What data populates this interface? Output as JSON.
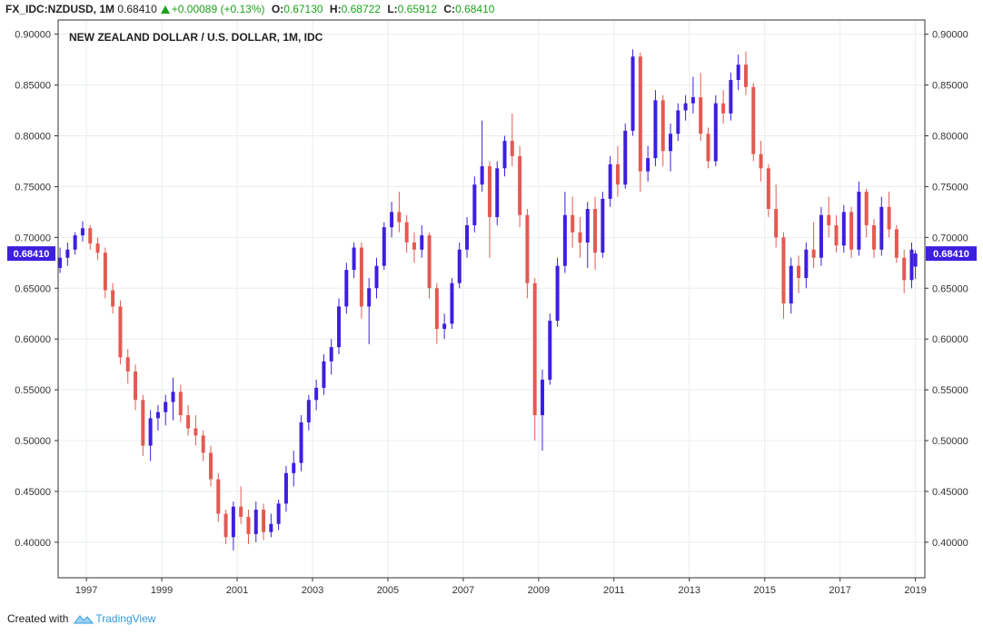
{
  "header": {
    "symbol": "FX_IDC:NZDUSD, 1M",
    "last": "0.68410",
    "change": "+0.00089 (+0.13%)",
    "open_label": "O:",
    "open": "0.67130",
    "high_label": "H:",
    "high": "0.68722",
    "low_label": "L:",
    "low": "0.65912",
    "close_label": "C:",
    "close": "0.68410"
  },
  "footer": {
    "created_with": "Created with",
    "brand": "TradingView"
  },
  "colors": {
    "up": "#3d1fe0",
    "down": "#e35a52",
    "grid": "#e8edf1",
    "axis": "#333333",
    "price_label_bg": "#3d1fe0"
  },
  "chart_data": {
    "type": "candlestick",
    "title": "NEW ZEALAND DOLLAR / U.S. DOLLAR, 1M, IDC",
    "ylim": [
      0.365,
      0.914
    ],
    "xlim": [
      1996.25,
      2019.25
    ],
    "y_ticks": [
      "0.90000",
      "0.85000",
      "0.80000",
      "0.75000",
      "0.70000",
      "0.65000",
      "0.60000",
      "0.55000",
      "0.50000",
      "0.45000",
      "0.40000"
    ],
    "x_ticks": [
      "1997",
      "1999",
      "2001",
      "2003",
      "2005",
      "2007",
      "2009",
      "2011",
      "2013",
      "2015",
      "2017",
      "2019"
    ],
    "last_price_label": "0.68410",
    "last_price": 0.6841,
    "grid": true,
    "candles": [
      {
        "t": 1996.3,
        "o": 0.67,
        "h": 0.69,
        "l": 0.665,
        "c": 0.68
      },
      {
        "t": 1996.5,
        "o": 0.68,
        "h": 0.695,
        "l": 0.672,
        "c": 0.688
      },
      {
        "t": 1996.7,
        "o": 0.688,
        "h": 0.705,
        "l": 0.683,
        "c": 0.702
      },
      {
        "t": 1996.9,
        "o": 0.702,
        "h": 0.716,
        "l": 0.696,
        "c": 0.709
      },
      {
        "t": 1997.1,
        "o": 0.709,
        "h": 0.712,
        "l": 0.688,
        "c": 0.694
      },
      {
        "t": 1997.3,
        "o": 0.694,
        "h": 0.7,
        "l": 0.678,
        "c": 0.685
      },
      {
        "t": 1997.5,
        "o": 0.685,
        "h": 0.69,
        "l": 0.64,
        "c": 0.648
      },
      {
        "t": 1997.7,
        "o": 0.648,
        "h": 0.655,
        "l": 0.625,
        "c": 0.632
      },
      {
        "t": 1997.9,
        "o": 0.632,
        "h": 0.638,
        "l": 0.575,
        "c": 0.582
      },
      {
        "t": 1998.1,
        "o": 0.582,
        "h": 0.59,
        "l": 0.556,
        "c": 0.568
      },
      {
        "t": 1998.3,
        "o": 0.568,
        "h": 0.575,
        "l": 0.53,
        "c": 0.54
      },
      {
        "t": 1998.5,
        "o": 0.54,
        "h": 0.545,
        "l": 0.485,
        "c": 0.495
      },
      {
        "t": 1998.7,
        "o": 0.495,
        "h": 0.53,
        "l": 0.48,
        "c": 0.522
      },
      {
        "t": 1998.9,
        "o": 0.522,
        "h": 0.535,
        "l": 0.51,
        "c": 0.528
      },
      {
        "t": 1999.1,
        "o": 0.528,
        "h": 0.545,
        "l": 0.515,
        "c": 0.538
      },
      {
        "t": 1999.3,
        "o": 0.538,
        "h": 0.562,
        "l": 0.52,
        "c": 0.548
      },
      {
        "t": 1999.5,
        "o": 0.548,
        "h": 0.555,
        "l": 0.518,
        "c": 0.525
      },
      {
        "t": 1999.7,
        "o": 0.525,
        "h": 0.535,
        "l": 0.505,
        "c": 0.512
      },
      {
        "t": 1999.9,
        "o": 0.512,
        "h": 0.525,
        "l": 0.495,
        "c": 0.505
      },
      {
        "t": 2000.1,
        "o": 0.505,
        "h": 0.51,
        "l": 0.48,
        "c": 0.488
      },
      {
        "t": 2000.3,
        "o": 0.488,
        "h": 0.495,
        "l": 0.455,
        "c": 0.462
      },
      {
        "t": 2000.5,
        "o": 0.462,
        "h": 0.468,
        "l": 0.42,
        "c": 0.428
      },
      {
        "t": 2000.7,
        "o": 0.428,
        "h": 0.432,
        "l": 0.398,
        "c": 0.405
      },
      {
        "t": 2000.9,
        "o": 0.405,
        "h": 0.44,
        "l": 0.392,
        "c": 0.435
      },
      {
        "t": 2001.1,
        "o": 0.435,
        "h": 0.455,
        "l": 0.418,
        "c": 0.425
      },
      {
        "t": 2001.3,
        "o": 0.425,
        "h": 0.432,
        "l": 0.398,
        "c": 0.408
      },
      {
        "t": 2001.5,
        "o": 0.408,
        "h": 0.44,
        "l": 0.4,
        "c": 0.432
      },
      {
        "t": 2001.7,
        "o": 0.432,
        "h": 0.438,
        "l": 0.402,
        "c": 0.41
      },
      {
        "t": 2001.9,
        "o": 0.41,
        "h": 0.428,
        "l": 0.405,
        "c": 0.418
      },
      {
        "t": 2002.1,
        "o": 0.418,
        "h": 0.442,
        "l": 0.412,
        "c": 0.438
      },
      {
        "t": 2002.3,
        "o": 0.438,
        "h": 0.475,
        "l": 0.43,
        "c": 0.468
      },
      {
        "t": 2002.5,
        "o": 0.468,
        "h": 0.49,
        "l": 0.455,
        "c": 0.478
      },
      {
        "t": 2002.7,
        "o": 0.478,
        "h": 0.525,
        "l": 0.47,
        "c": 0.518
      },
      {
        "t": 2002.9,
        "o": 0.518,
        "h": 0.545,
        "l": 0.51,
        "c": 0.54
      },
      {
        "t": 2003.1,
        "o": 0.54,
        "h": 0.56,
        "l": 0.53,
        "c": 0.552
      },
      {
        "t": 2003.3,
        "o": 0.552,
        "h": 0.585,
        "l": 0.545,
        "c": 0.578
      },
      {
        "t": 2003.5,
        "o": 0.578,
        "h": 0.6,
        "l": 0.565,
        "c": 0.592
      },
      {
        "t": 2003.7,
        "o": 0.592,
        "h": 0.64,
        "l": 0.585,
        "c": 0.632
      },
      {
        "t": 2003.9,
        "o": 0.632,
        "h": 0.675,
        "l": 0.625,
        "c": 0.668
      },
      {
        "t": 2004.1,
        "o": 0.668,
        "h": 0.695,
        "l": 0.66,
        "c": 0.69
      },
      {
        "t": 2004.3,
        "o": 0.69,
        "h": 0.695,
        "l": 0.62,
        "c": 0.632
      },
      {
        "t": 2004.5,
        "o": 0.632,
        "h": 0.66,
        "l": 0.595,
        "c": 0.65
      },
      {
        "t": 2004.7,
        "o": 0.65,
        "h": 0.68,
        "l": 0.64,
        "c": 0.672
      },
      {
        "t": 2004.9,
        "o": 0.672,
        "h": 0.715,
        "l": 0.668,
        "c": 0.71
      },
      {
        "t": 2005.1,
        "o": 0.71,
        "h": 0.735,
        "l": 0.7,
        "c": 0.725
      },
      {
        "t": 2005.3,
        "o": 0.725,
        "h": 0.745,
        "l": 0.705,
        "c": 0.715
      },
      {
        "t": 2005.5,
        "o": 0.715,
        "h": 0.722,
        "l": 0.685,
        "c": 0.695
      },
      {
        "t": 2005.7,
        "o": 0.695,
        "h": 0.705,
        "l": 0.675,
        "c": 0.688
      },
      {
        "t": 2005.9,
        "o": 0.688,
        "h": 0.712,
        "l": 0.68,
        "c": 0.702
      },
      {
        "t": 2006.1,
        "o": 0.702,
        "h": 0.705,
        "l": 0.64,
        "c": 0.65
      },
      {
        "t": 2006.3,
        "o": 0.65,
        "h": 0.655,
        "l": 0.595,
        "c": 0.61
      },
      {
        "t": 2006.5,
        "o": 0.61,
        "h": 0.625,
        "l": 0.6,
        "c": 0.615
      },
      {
        "t": 2006.7,
        "o": 0.615,
        "h": 0.66,
        "l": 0.61,
        "c": 0.655
      },
      {
        "t": 2006.9,
        "o": 0.655,
        "h": 0.695,
        "l": 0.65,
        "c": 0.688
      },
      {
        "t": 2007.1,
        "o": 0.688,
        "h": 0.72,
        "l": 0.68,
        "c": 0.712
      },
      {
        "t": 2007.3,
        "o": 0.712,
        "h": 0.76,
        "l": 0.705,
        "c": 0.752
      },
      {
        "t": 2007.5,
        "o": 0.752,
        "h": 0.815,
        "l": 0.745,
        "c": 0.77
      },
      {
        "t": 2007.7,
        "o": 0.77,
        "h": 0.775,
        "l": 0.68,
        "c": 0.72
      },
      {
        "t": 2007.9,
        "o": 0.72,
        "h": 0.775,
        "l": 0.712,
        "c": 0.768
      },
      {
        "t": 2008.1,
        "o": 0.768,
        "h": 0.8,
        "l": 0.76,
        "c": 0.795
      },
      {
        "t": 2008.3,
        "o": 0.795,
        "h": 0.822,
        "l": 0.77,
        "c": 0.78
      },
      {
        "t": 2008.5,
        "o": 0.78,
        "h": 0.79,
        "l": 0.71,
        "c": 0.722
      },
      {
        "t": 2008.7,
        "o": 0.722,
        "h": 0.728,
        "l": 0.64,
        "c": 0.655
      },
      {
        "t": 2008.9,
        "o": 0.655,
        "h": 0.66,
        "l": 0.5,
        "c": 0.525
      },
      {
        "t": 2009.1,
        "o": 0.525,
        "h": 0.57,
        "l": 0.49,
        "c": 0.56
      },
      {
        "t": 2009.3,
        "o": 0.56,
        "h": 0.625,
        "l": 0.555,
        "c": 0.618
      },
      {
        "t": 2009.5,
        "o": 0.618,
        "h": 0.68,
        "l": 0.612,
        "c": 0.672
      },
      {
        "t": 2009.7,
        "o": 0.672,
        "h": 0.745,
        "l": 0.665,
        "c": 0.722
      },
      {
        "t": 2009.9,
        "o": 0.722,
        "h": 0.74,
        "l": 0.69,
        "c": 0.705
      },
      {
        "t": 2010.1,
        "o": 0.705,
        "h": 0.72,
        "l": 0.68,
        "c": 0.695
      },
      {
        "t": 2010.3,
        "o": 0.695,
        "h": 0.735,
        "l": 0.67,
        "c": 0.728
      },
      {
        "t": 2010.5,
        "o": 0.728,
        "h": 0.74,
        "l": 0.668,
        "c": 0.685
      },
      {
        "t": 2010.7,
        "o": 0.685,
        "h": 0.745,
        "l": 0.68,
        "c": 0.738
      },
      {
        "t": 2010.9,
        "o": 0.738,
        "h": 0.78,
        "l": 0.73,
        "c": 0.772
      },
      {
        "t": 2011.1,
        "o": 0.772,
        "h": 0.79,
        "l": 0.74,
        "c": 0.752
      },
      {
        "t": 2011.3,
        "o": 0.752,
        "h": 0.812,
        "l": 0.748,
        "c": 0.805
      },
      {
        "t": 2011.5,
        "o": 0.805,
        "h": 0.885,
        "l": 0.8,
        "c": 0.878
      },
      {
        "t": 2011.7,
        "o": 0.878,
        "h": 0.882,
        "l": 0.745,
        "c": 0.765
      },
      {
        "t": 2011.9,
        "o": 0.765,
        "h": 0.79,
        "l": 0.755,
        "c": 0.778
      },
      {
        "t": 2012.1,
        "o": 0.778,
        "h": 0.845,
        "l": 0.77,
        "c": 0.835
      },
      {
        "t": 2012.3,
        "o": 0.835,
        "h": 0.84,
        "l": 0.77,
        "c": 0.785
      },
      {
        "t": 2012.5,
        "o": 0.785,
        "h": 0.812,
        "l": 0.765,
        "c": 0.802
      },
      {
        "t": 2012.7,
        "o": 0.802,
        "h": 0.832,
        "l": 0.795,
        "c": 0.825
      },
      {
        "t": 2012.9,
        "o": 0.825,
        "h": 0.84,
        "l": 0.815,
        "c": 0.832
      },
      {
        "t": 2013.1,
        "o": 0.832,
        "h": 0.858,
        "l": 0.822,
        "c": 0.838
      },
      {
        "t": 2013.3,
        "o": 0.838,
        "h": 0.862,
        "l": 0.795,
        "c": 0.802
      },
      {
        "t": 2013.5,
        "o": 0.802,
        "h": 0.808,
        "l": 0.768,
        "c": 0.775
      },
      {
        "t": 2013.7,
        "o": 0.775,
        "h": 0.84,
        "l": 0.77,
        "c": 0.832
      },
      {
        "t": 2013.9,
        "o": 0.832,
        "h": 0.845,
        "l": 0.812,
        "c": 0.822
      },
      {
        "t": 2014.1,
        "o": 0.822,
        "h": 0.862,
        "l": 0.815,
        "c": 0.855
      },
      {
        "t": 2014.3,
        "o": 0.855,
        "h": 0.88,
        "l": 0.845,
        "c": 0.87
      },
      {
        "t": 2014.5,
        "o": 0.87,
        "h": 0.883,
        "l": 0.84,
        "c": 0.848
      },
      {
        "t": 2014.7,
        "o": 0.848,
        "h": 0.852,
        "l": 0.775,
        "c": 0.782
      },
      {
        "t": 2014.9,
        "o": 0.782,
        "h": 0.795,
        "l": 0.755,
        "c": 0.768
      },
      {
        "t": 2015.1,
        "o": 0.768,
        "h": 0.772,
        "l": 0.72,
        "c": 0.728
      },
      {
        "t": 2015.3,
        "o": 0.728,
        "h": 0.752,
        "l": 0.69,
        "c": 0.7
      },
      {
        "t": 2015.5,
        "o": 0.7,
        "h": 0.705,
        "l": 0.62,
        "c": 0.635
      },
      {
        "t": 2015.7,
        "o": 0.635,
        "h": 0.68,
        "l": 0.625,
        "c": 0.672
      },
      {
        "t": 2015.9,
        "o": 0.672,
        "h": 0.682,
        "l": 0.645,
        "c": 0.66
      },
      {
        "t": 2016.1,
        "o": 0.66,
        "h": 0.695,
        "l": 0.65,
        "c": 0.688
      },
      {
        "t": 2016.3,
        "o": 0.688,
        "h": 0.715,
        "l": 0.67,
        "c": 0.68
      },
      {
        "t": 2016.5,
        "o": 0.68,
        "h": 0.73,
        "l": 0.672,
        "c": 0.722
      },
      {
        "t": 2016.7,
        "o": 0.722,
        "h": 0.74,
        "l": 0.7,
        "c": 0.712
      },
      {
        "t": 2016.9,
        "o": 0.712,
        "h": 0.722,
        "l": 0.685,
        "c": 0.692
      },
      {
        "t": 2017.1,
        "o": 0.692,
        "h": 0.732,
        "l": 0.685,
        "c": 0.725
      },
      {
        "t": 2017.3,
        "o": 0.725,
        "h": 0.73,
        "l": 0.68,
        "c": 0.688
      },
      {
        "t": 2017.5,
        "o": 0.688,
        "h": 0.755,
        "l": 0.682,
        "c": 0.745
      },
      {
        "t": 2017.7,
        "o": 0.745,
        "h": 0.748,
        "l": 0.7,
        "c": 0.712
      },
      {
        "t": 2017.9,
        "o": 0.712,
        "h": 0.718,
        "l": 0.68,
        "c": 0.688
      },
      {
        "t": 2018.1,
        "o": 0.688,
        "h": 0.74,
        "l": 0.682,
        "c": 0.73
      },
      {
        "t": 2018.3,
        "o": 0.73,
        "h": 0.745,
        "l": 0.7,
        "c": 0.708
      },
      {
        "t": 2018.5,
        "o": 0.708,
        "h": 0.712,
        "l": 0.675,
        "c": 0.68
      },
      {
        "t": 2018.7,
        "o": 0.68,
        "h": 0.688,
        "l": 0.645,
        "c": 0.658
      },
      {
        "t": 2018.9,
        "o": 0.658,
        "h": 0.695,
        "l": 0.65,
        "c": 0.688
      },
      {
        "t": 2019.0,
        "o": 0.6713,
        "h": 0.68722,
        "l": 0.65912,
        "c": 0.6841
      }
    ]
  }
}
